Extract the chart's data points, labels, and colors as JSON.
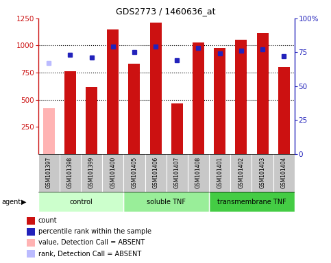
{
  "title": "GDS2773 / 1460636_at",
  "samples": [
    "GSM101397",
    "GSM101398",
    "GSM101399",
    "GSM101400",
    "GSM101405",
    "GSM101406",
    "GSM101407",
    "GSM101408",
    "GSM101401",
    "GSM101402",
    "GSM101403",
    "GSM101404"
  ],
  "bar_values": [
    420,
    760,
    620,
    1150,
    830,
    1210,
    465,
    1030,
    975,
    1055,
    1115,
    800
  ],
  "bar_colors": [
    "#ffb3b3",
    "#cc1111",
    "#cc1111",
    "#cc1111",
    "#cc1111",
    "#cc1111",
    "#cc1111",
    "#cc1111",
    "#cc1111",
    "#cc1111",
    "#cc1111",
    "#cc1111"
  ],
  "dot_values_pct": [
    67,
    73,
    71,
    79,
    75,
    79,
    69,
    78,
    74,
    76,
    77,
    72
  ],
  "dot_colors": [
    "#bbbbff",
    "#2222bb",
    "#2222bb",
    "#2222bb",
    "#2222bb",
    "#2222bb",
    "#2222bb",
    "#2222bb",
    "#2222bb",
    "#2222bb",
    "#2222bb",
    "#2222bb"
  ],
  "dot_is_absent": [
    true,
    false,
    false,
    false,
    false,
    false,
    false,
    false,
    false,
    false,
    false,
    false
  ],
  "bar_is_absent": [
    true,
    false,
    false,
    false,
    false,
    false,
    false,
    false,
    false,
    false,
    false,
    false
  ],
  "groups": [
    {
      "label": "control",
      "start": 0,
      "end": 4,
      "color": "#ccffcc"
    },
    {
      "label": "soluble TNF",
      "start": 4,
      "end": 8,
      "color": "#99ee99"
    },
    {
      "label": "transmembrane TNF",
      "start": 8,
      "end": 12,
      "color": "#44cc44"
    }
  ],
  "ylim_left": [
    0,
    1250
  ],
  "ylim_right": [
    0,
    100
  ],
  "yticks_left": [
    250,
    500,
    750,
    1000,
    1250
  ],
  "yticks_right": [
    0,
    25,
    50,
    75,
    100
  ],
  "background_color": "#ffffff",
  "plot_bg_color": "#ffffff",
  "grid_color": "#000000",
  "left_axis_color": "#cc1111",
  "right_axis_color": "#2222bb"
}
